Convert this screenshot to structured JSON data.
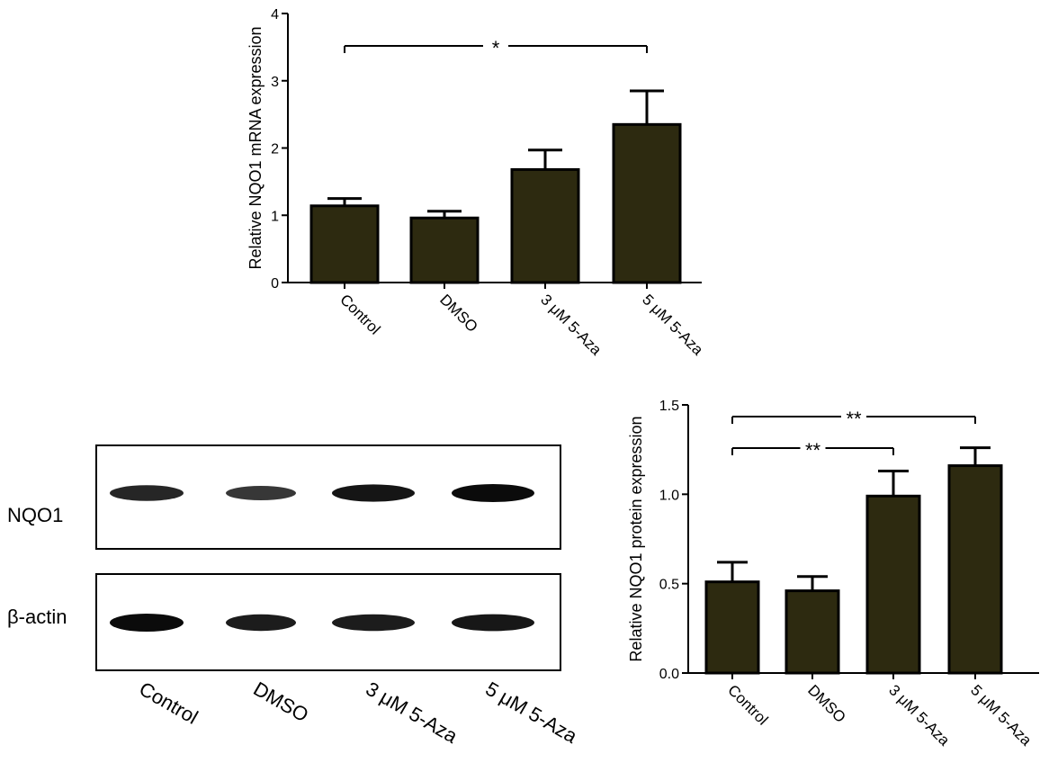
{
  "colors": {
    "bar_fill": "#2d2a10",
    "bar_stroke": "#000000",
    "axis": "#000000",
    "band": "#0b0b0b"
  },
  "chart_data": [
    {
      "type": "bar",
      "categories": [
        "Control",
        "DMSO",
        "3 μM 5-Aza",
        "5 μM 5-Aza"
      ],
      "values": [
        1.14,
        0.96,
        1.68,
        2.35
      ],
      "errors": [
        0.11,
        0.1,
        0.29,
        0.5
      ],
      "ylabel": "Relative NQO1 mRNA expression",
      "xlabel": "",
      "ylim": [
        0,
        4
      ],
      "yticks": [
        "0",
        "1",
        "2",
        "3",
        "4"
      ],
      "significance": [
        {
          "from": "Control",
          "to": "5 μM 5-Aza",
          "label": "*"
        }
      ],
      "grid": false
    },
    {
      "type": "bar",
      "categories": [
        "Control",
        "DMSO",
        "3 μM 5-Aza",
        "5 μM 5-Aza"
      ],
      "values": [
        0.51,
        0.46,
        0.99,
        1.16
      ],
      "errors": [
        0.11,
        0.08,
        0.14,
        0.1
      ],
      "ylabel": "Relative NQO1 protein expression",
      "xlabel": "",
      "ylim": [
        0,
        1.5
      ],
      "yticks": [
        "0.0",
        "0.5",
        "1.0",
        "1.5"
      ],
      "significance": [
        {
          "from": "Control",
          "to": "5 μM 5-Aza",
          "label": "**"
        },
        {
          "from": "Control",
          "to": "3 μM 5-Aza",
          "label": "**"
        }
      ],
      "grid": false
    }
  ],
  "western_blot": {
    "rows": [
      {
        "label": "NQO1",
        "intensities": [
          0.75,
          0.6,
          0.92,
          1.0
        ]
      },
      {
        "label": "β-actin",
        "intensities": [
          1.0,
          0.85,
          0.85,
          0.88
        ]
      }
    ],
    "lanes": [
      "Control",
      "DMSO",
      "3 μM 5-Aza",
      "5 μM 5-Aza"
    ]
  }
}
